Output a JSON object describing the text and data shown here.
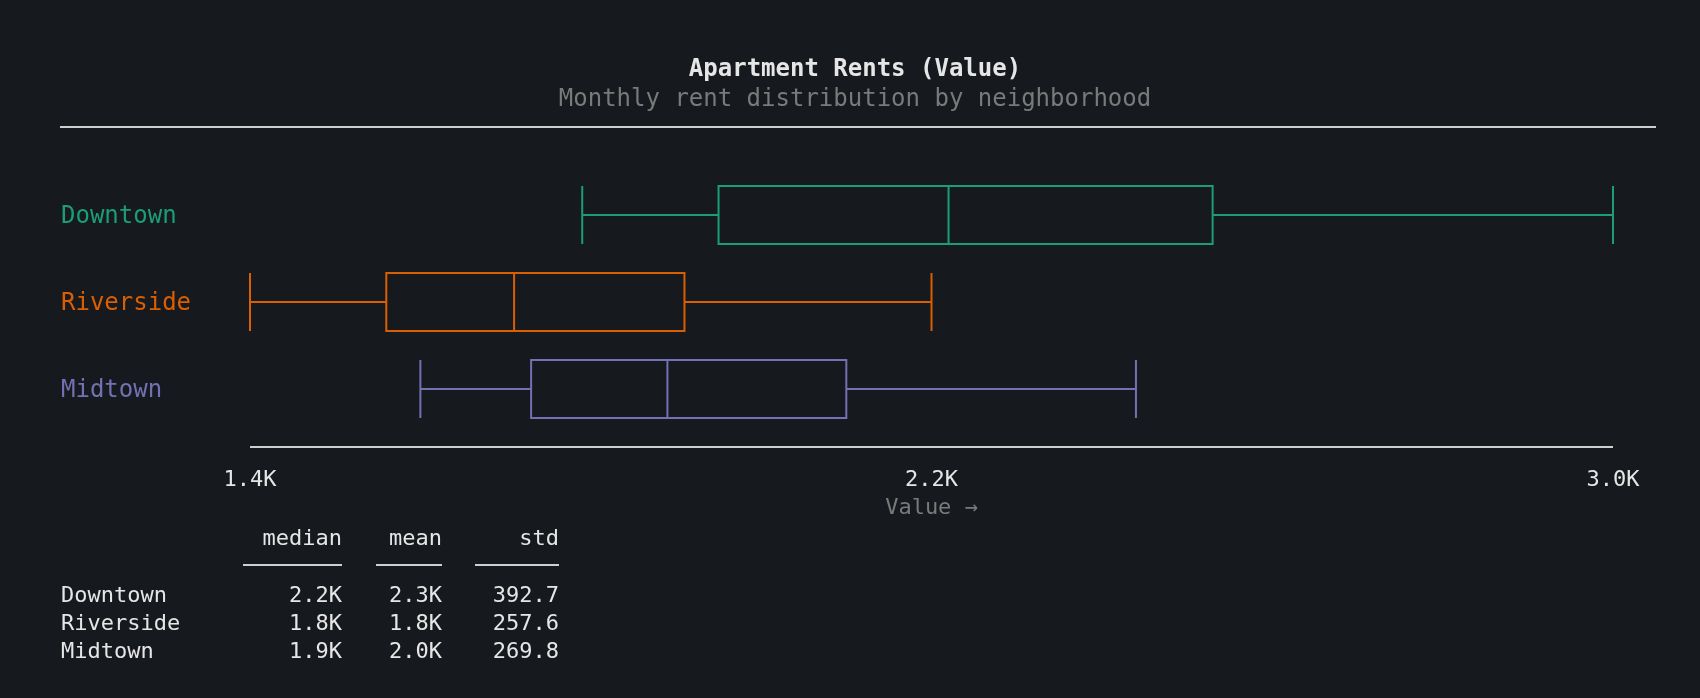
{
  "chart_data": {
    "type": "box",
    "orientation": "horizontal",
    "title": "Apartment Rents (Value)",
    "subtitle": "Monthly rent distribution by neighborhood",
    "xlabel": "Value →",
    "categories": [
      "Downtown",
      "Riverside",
      "Midtown"
    ],
    "series": [
      {
        "color": "#1b9e77",
        "boxes": [
          {
            "low": 1790,
            "q1": 1950,
            "median": 2220,
            "q3": 2530,
            "high": 3000
          },
          null,
          null
        ]
      },
      {
        "color": "#d95f02",
        "boxes": [
          null,
          {
            "low": 1400,
            "q1": 1560,
            "median": 1710,
            "q3": 1910,
            "high": 2200
          },
          null
        ]
      },
      {
        "color": "#7570b3",
        "boxes": [
          null,
          null,
          {
            "low": 1600,
            "q1": 1730,
            "median": 1890,
            "q3": 2100,
            "high": 2440
          }
        ]
      }
    ],
    "xlim": [
      1400,
      3000
    ],
    "xticks": [
      {
        "value": 1400,
        "label": "1.4K"
      },
      {
        "value": 2200,
        "label": "2.2K"
      },
      {
        "value": 3000,
        "label": "3.0K"
      }
    ],
    "grid": false,
    "annotations": [
      "median",
      "mean",
      "std",
      "2.2K",
      "2.3K",
      "392.7",
      "1.8K",
      "1.8K",
      "257.6",
      "1.9K",
      "2.0K",
      "269.8"
    ]
  }
}
